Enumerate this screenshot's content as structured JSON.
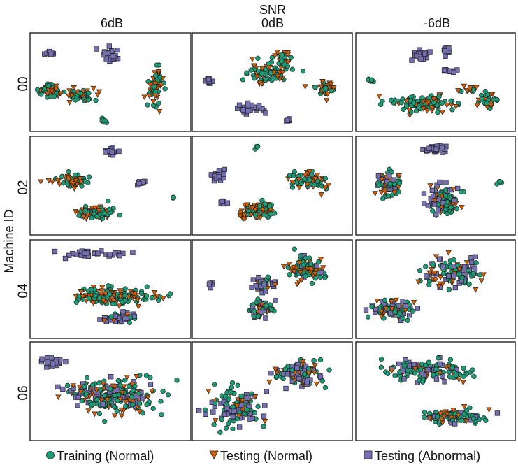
{
  "figure": {
    "super_column_label": "SNR",
    "row_axis_label": "Machine ID",
    "column_labels": [
      "6dB",
      "0dB",
      "-6dB"
    ],
    "row_labels": [
      "00",
      "02",
      "04",
      "06"
    ]
  },
  "legend": {
    "placement": "bottom",
    "items": [
      {
        "label": "Training (Normal)",
        "marker": "circle",
        "color": "#1b9e77"
      },
      {
        "label": "Testing (Normal)",
        "marker": "triangle-down",
        "color": "#d95f02"
      },
      {
        "label": "Testing (Abnormal)",
        "marker": "square",
        "color": "#7570b3"
      }
    ]
  },
  "chart_data": {
    "type": "scatter",
    "description_type": "t-SNE embedding grid (4 machine IDs x 3 SNR levels)",
    "grid": false,
    "axes_ticks": false,
    "series_styles": {
      "train": {
        "name": "Training (Normal)",
        "color": "#1b9e77",
        "marker": "circle"
      },
      "test_normal": {
        "name": "Testing (Normal)",
        "color": "#d95f02",
        "marker": "triangle-down"
      },
      "test_abnormal": {
        "name": "Testing (Abnormal)",
        "color": "#7570b3",
        "marker": "square"
      }
    },
    "panels": [
      {
        "row": "00",
        "snr": "6dB",
        "clusters": [
          {
            "c": [
              0.1,
              0.6
            ],
            "s": [
              0.07,
              0.06
            ],
            "n": 60,
            "mix": [
              0.5,
              0.5,
              0
            ]
          },
          {
            "c": [
              0.3,
              0.64
            ],
            "s": [
              0.08,
              0.06
            ],
            "n": 60,
            "mix": [
              0.5,
              0.5,
              0
            ]
          },
          {
            "c": [
              0.8,
              0.55
            ],
            "s": [
              0.04,
              0.18
            ],
            "n": 70,
            "mix": [
              0.5,
              0.5,
              0
            ]
          },
          {
            "c": [
              0.5,
              0.2
            ],
            "s": [
              0.05,
              0.08
            ],
            "n": 25,
            "mix": [
              0,
              0,
              1
            ]
          },
          {
            "c": [
              0.1,
              0.18
            ],
            "s": [
              0.03,
              0.03
            ],
            "n": 10,
            "mix": [
              0,
              0,
              1
            ]
          },
          {
            "c": [
              0.45,
              0.93
            ],
            "s": [
              0.02,
              0.02
            ],
            "n": 6,
            "mix": [
              1,
              0,
              0
            ]
          }
        ]
      },
      {
        "row": "00",
        "snr": "0dB",
        "clusters": [
          {
            "c": [
              0.45,
              0.4
            ],
            "s": [
              0.14,
              0.1
            ],
            "n": 80,
            "mix": [
              0.5,
              0.5,
              0
            ]
          },
          {
            "c": [
              0.57,
              0.25
            ],
            "s": [
              0.06,
              0.08
            ],
            "n": 40,
            "mix": [
              0.5,
              0.5,
              0
            ]
          },
          {
            "c": [
              0.85,
              0.58
            ],
            "s": [
              0.06,
              0.07
            ],
            "n": 40,
            "mix": [
              0.5,
              0.5,
              0
            ]
          },
          {
            "c": [
              0.33,
              0.8
            ],
            "s": [
              0.09,
              0.07
            ],
            "n": 30,
            "mix": [
              0,
              0,
              1
            ]
          },
          {
            "c": [
              0.08,
              0.47
            ],
            "s": [
              0.03,
              0.04
            ],
            "n": 8,
            "mix": [
              0,
              0,
              1
            ]
          },
          {
            "c": [
              0.6,
              0.93
            ],
            "s": [
              0.02,
              0.02
            ],
            "n": 6,
            "mix": [
              0,
              0,
              1
            ]
          }
        ]
      },
      {
        "row": "00",
        "snr": "-6dB",
        "clusters": [
          {
            "c": [
              0.42,
              0.73
            ],
            "s": [
              0.18,
              0.09
            ],
            "n": 110,
            "mix": [
              0.55,
              0.45,
              0
            ]
          },
          {
            "c": [
              0.85,
              0.7
            ],
            "s": [
              0.06,
              0.08
            ],
            "n": 40,
            "mix": [
              0.55,
              0.45,
              0
            ]
          },
          {
            "c": [
              0.72,
              0.58
            ],
            "s": [
              0.08,
              0.04
            ],
            "n": 15,
            "mix": [
              0.5,
              0.5,
              0
            ]
          },
          {
            "c": [
              0.4,
              0.2
            ],
            "s": [
              0.05,
              0.07
            ],
            "n": 25,
            "mix": [
              0,
              0,
              1
            ]
          },
          {
            "c": [
              0.57,
              0.15
            ],
            "s": [
              0.02,
              0.05
            ],
            "n": 10,
            "mix": [
              0,
              0,
              1
            ]
          },
          {
            "c": [
              0.6,
              0.38
            ],
            "s": [
              0.06,
              0.02
            ],
            "n": 15,
            "mix": [
              0,
              0,
              1
            ]
          },
          {
            "c": [
              0.07,
              0.47
            ],
            "s": [
              0.02,
              0.02
            ],
            "n": 6,
            "mix": [
              1,
              0,
              0
            ]
          }
        ]
      },
      {
        "row": "02",
        "snr": "6dB",
        "clusters": [
          {
            "c": [
              0.25,
              0.45
            ],
            "s": [
              0.1,
              0.06
            ],
            "n": 80,
            "mix": [
              0.5,
              0.5,
              0
            ]
          },
          {
            "c": [
              0.4,
              0.8
            ],
            "s": [
              0.09,
              0.07
            ],
            "n": 80,
            "mix": [
              0.5,
              0.5,
              0
            ]
          },
          {
            "c": [
              0.5,
              0.12
            ],
            "s": [
              0.03,
              0.05
            ],
            "n": 14,
            "mix": [
              0,
              0,
              1
            ]
          },
          {
            "c": [
              0.7,
              0.47
            ],
            "s": [
              0.03,
              0.02
            ],
            "n": 10,
            "mix": [
              0,
              0,
              1
            ]
          },
          {
            "c": [
              0.92,
              0.63
            ],
            "s": [
              0.015,
              0.015
            ],
            "n": 4,
            "mix": [
              1,
              0,
              0
            ]
          }
        ]
      },
      {
        "row": "02",
        "snr": "0dB",
        "clusters": [
          {
            "c": [
              0.75,
              0.45
            ],
            "s": [
              0.1,
              0.08
            ],
            "n": 80,
            "mix": [
              0.5,
              0.5,
              0
            ]
          },
          {
            "c": [
              0.4,
              0.78
            ],
            "s": [
              0.11,
              0.08
            ],
            "n": 80,
            "mix": [
              0.5,
              0.5,
              0
            ]
          },
          {
            "c": [
              0.14,
              0.38
            ],
            "s": [
              0.05,
              0.05
            ],
            "n": 20,
            "mix": [
              0,
              0,
              1
            ]
          },
          {
            "c": [
              0.17,
              0.68
            ],
            "s": [
              0.03,
              0.02
            ],
            "n": 8,
            "mix": [
              0,
              0,
              1
            ]
          },
          {
            "c": [
              0.4,
              0.07
            ],
            "s": [
              0.015,
              0.015
            ],
            "n": 4,
            "mix": [
              1,
              0,
              0
            ]
          }
        ]
      },
      {
        "row": "02",
        "snr": "-6dB",
        "clusters": [
          {
            "c": [
              0.2,
              0.48
            ],
            "s": [
              0.07,
              0.12
            ],
            "n": 70,
            "mix": [
              0.35,
              0.3,
              0.35
            ]
          },
          {
            "c": [
              0.55,
              0.68
            ],
            "s": [
              0.09,
              0.15
            ],
            "n": 100,
            "mix": [
              0.35,
              0.3,
              0.35
            ]
          },
          {
            "c": [
              0.5,
              0.1
            ],
            "s": [
              0.07,
              0.04
            ],
            "n": 25,
            "mix": [
              0,
              0,
              1
            ]
          },
          {
            "c": [
              0.92,
              0.47
            ],
            "s": [
              0.015,
              0.015
            ],
            "n": 4,
            "mix": [
              1,
              0,
              0
            ]
          }
        ]
      },
      {
        "row": "04",
        "snr": "6dB",
        "clusters": [
          {
            "c": [
              0.5,
              0.58
            ],
            "s": [
              0.24,
              0.08
            ],
            "n": 180,
            "mix": [
              0.55,
              0.45,
              0
            ]
          },
          {
            "c": [
              0.4,
              0.1
            ],
            "s": [
              0.18,
              0.03
            ],
            "n": 30,
            "mix": [
              0,
              0,
              1
            ]
          },
          {
            "c": [
              0.55,
              0.82
            ],
            "s": [
              0.1,
              0.05
            ],
            "n": 40,
            "mix": [
              0.25,
              0.15,
              0.6
            ]
          }
        ]
      },
      {
        "row": "04",
        "snr": "0dB",
        "clusters": [
          {
            "c": [
              0.72,
              0.28
            ],
            "s": [
              0.12,
              0.12
            ],
            "n": 100,
            "mix": [
              0.5,
              0.4,
              0.1
            ]
          },
          {
            "c": [
              0.43,
              0.72
            ],
            "s": [
              0.07,
              0.1
            ],
            "n": 60,
            "mix": [
              0.5,
              0.3,
              0.2
            ]
          },
          {
            "c": [
              0.45,
              0.45
            ],
            "s": [
              0.07,
              0.08
            ],
            "n": 40,
            "mix": [
              0.2,
              0.2,
              0.6
            ]
          },
          {
            "c": [
              0.1,
              0.45
            ],
            "s": [
              0.02,
              0.03
            ],
            "n": 6,
            "mix": [
              0,
              0,
              1
            ]
          }
        ]
      },
      {
        "row": "04",
        "snr": "-6dB",
        "clusters": [
          {
            "c": [
              0.62,
              0.32
            ],
            "s": [
              0.18,
              0.14
            ],
            "n": 120,
            "mix": [
              0.35,
              0.3,
              0.35
            ]
          },
          {
            "c": [
              0.22,
              0.72
            ],
            "s": [
              0.14,
              0.1
            ],
            "n": 80,
            "mix": [
              0.35,
              0.3,
              0.35
            ]
          }
        ]
      },
      {
        "row": "06",
        "snr": "6dB",
        "clusters": [
          {
            "c": [
              0.55,
              0.55
            ],
            "s": [
              0.22,
              0.18
            ],
            "n": 200,
            "mix": [
              0.55,
              0.3,
              0.15
            ]
          },
          {
            "c": [
              0.12,
              0.18
            ],
            "s": [
              0.07,
              0.05
            ],
            "n": 30,
            "mix": [
              0,
              0,
              1
            ]
          },
          {
            "c": [
              0.35,
              0.48
            ],
            "s": [
              0.15,
              0.1
            ],
            "n": 40,
            "mix": [
              0.3,
              0.2,
              0.5
            ]
          }
        ]
      },
      {
        "row": "06",
        "snr": "0dB",
        "clusters": [
          {
            "c": [
              0.25,
              0.68
            ],
            "s": [
              0.14,
              0.18
            ],
            "n": 130,
            "mix": [
              0.45,
              0.25,
              0.3
            ]
          },
          {
            "c": [
              0.68,
              0.3
            ],
            "s": [
              0.16,
              0.12
            ],
            "n": 110,
            "mix": [
              0.4,
              0.3,
              0.3
            ]
          }
        ]
      },
      {
        "row": "06",
        "snr": "-6dB",
        "clusters": [
          {
            "c": [
              0.45,
              0.28
            ],
            "s": [
              0.24,
              0.12
            ],
            "n": 140,
            "mix": [
              0.5,
              0.2,
              0.3
            ]
          },
          {
            "c": [
              0.62,
              0.78
            ],
            "s": [
              0.18,
              0.08
            ],
            "n": 100,
            "mix": [
              0.5,
              0.3,
              0.2
            ]
          }
        ]
      }
    ]
  }
}
